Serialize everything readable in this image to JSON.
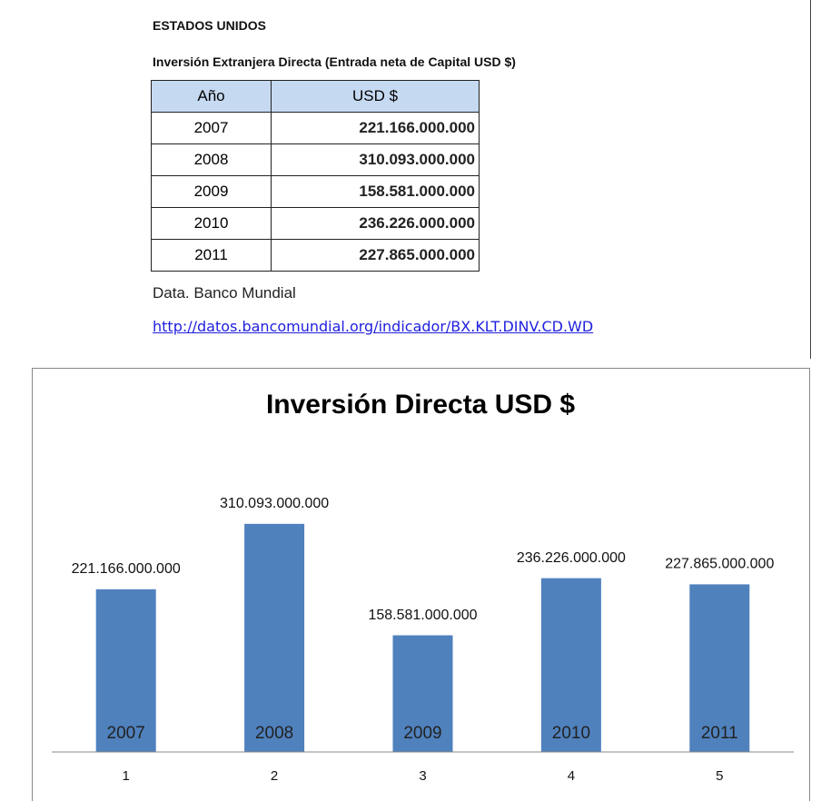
{
  "header": {
    "title": "ESTADOS UNIDOS",
    "subtitle": "Inversión Extranjera Directa  (Entrada neta de Capital USD $)"
  },
  "table": {
    "columns": [
      "Año",
      "USD $"
    ],
    "rows": [
      [
        "2007",
        "221.166.000.000"
      ],
      [
        "2008",
        "310.093.000.000"
      ],
      [
        "2009",
        "158.581.000.000"
      ],
      [
        "2010",
        "236.226.000.000"
      ],
      [
        "2011",
        "227.865.000.000"
      ]
    ]
  },
  "source": "Data. Banco Mundial",
  "link": "http://datos.bancomundial.org/indicador/BX.KLT.DINV.CD.WD",
  "chart_data": {
    "type": "bar",
    "title": "Inversión Directa USD $",
    "categories": [
      "1",
      "2",
      "3",
      "4",
      "5"
    ],
    "values": [
      221166000000,
      310093000000,
      158581000000,
      236226000000,
      227865000000
    ],
    "value_labels": [
      "221.166.000.000",
      "310.093.000.000",
      "158.581.000.000",
      "236.226.000.000",
      "227.865.000.000"
    ],
    "bar_labels": [
      "2007",
      "2008",
      "2009",
      "2010",
      "2011"
    ],
    "color": "#4f81bd",
    "ylim": [
      0,
      400000000000
    ]
  }
}
